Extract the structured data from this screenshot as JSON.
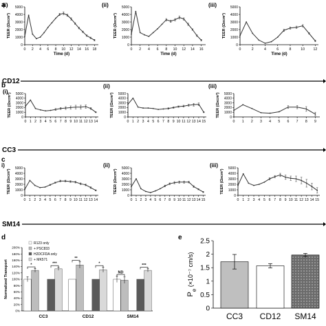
{
  "figure": {
    "panel_labels": {
      "a": "a",
      "b": "b",
      "c": "c",
      "d": "d",
      "e": "e"
    },
    "row_labels": [
      "CD12",
      "CC3",
      "SM14"
    ]
  },
  "chart_data": [
    {
      "id": "a-i",
      "type": "line",
      "subpanel_label": "(i)",
      "xlabel": "Time (d)",
      "ylabel": "TEER (Ωxcm²)",
      "xlim": [
        0,
        19
      ],
      "ylim": [
        0,
        5000
      ],
      "xticks": [
        0,
        2,
        4,
        6,
        8,
        10,
        12,
        14,
        16,
        18
      ],
      "yticks": [
        0,
        1000,
        2000,
        3000,
        4000,
        5000
      ],
      "ytick_labels": [
        "0",
        "1000",
        "2000",
        "3000",
        "4000",
        "5000"
      ],
      "x": [
        0,
        1,
        2,
        3,
        4,
        5,
        6,
        7,
        8,
        9,
        10,
        11,
        12,
        13,
        14,
        15,
        16,
        17,
        18
      ],
      "y": [
        1100,
        3900,
        1400,
        800,
        1000,
        1600,
        2300,
        2900,
        3500,
        4000,
        4150,
        3900,
        3400,
        2800,
        2200,
        1700,
        1200,
        900,
        600
      ],
      "err": [
        0,
        0,
        0,
        0,
        0,
        0,
        0,
        0,
        0,
        150,
        200,
        150,
        150,
        100,
        100,
        100,
        100,
        100,
        100
      ]
    },
    {
      "id": "a-ii",
      "type": "line",
      "subpanel_label": "(ii)",
      "xlabel": "Time (d)",
      "ylabel": "TEER (Ωxcm²)",
      "xlim": [
        0,
        17
      ],
      "ylim": [
        0,
        5000
      ],
      "xticks": [
        0,
        2,
        4,
        6,
        8,
        10,
        12,
        14,
        16
      ],
      "yticks": [
        0,
        1000,
        2000,
        3000,
        4000,
        5000
      ],
      "ytick_labels": [
        "0",
        "1000",
        "2000",
        "3000",
        "4000",
        "5000"
      ],
      "x": [
        0,
        1,
        2,
        3,
        4,
        5,
        6,
        7,
        8,
        9,
        10,
        11,
        12,
        13,
        14,
        15,
        16
      ],
      "y": [
        1400,
        4400,
        1600,
        1300,
        1100,
        1600,
        2100,
        2700,
        3300,
        3100,
        3300,
        3600,
        3400,
        2700,
        2000,
        1200,
        600
      ],
      "err": [
        0,
        0,
        0,
        0,
        0,
        0,
        0,
        0,
        150,
        150,
        150,
        200,
        150,
        150,
        100,
        100,
        100
      ]
    },
    {
      "id": "a-iii",
      "type": "line",
      "subpanel_label": "(iii)",
      "xlabel": "Time (d)",
      "ylabel": "TEER (Ωxcm²)",
      "xlim": [
        0,
        12.5
      ],
      "ylim": [
        0,
        5000
      ],
      "xticks": [
        0,
        2,
        4,
        6,
        8,
        10,
        12
      ],
      "yticks": [
        0,
        1000,
        2000,
        3000,
        4000,
        5000
      ],
      "ytick_labels": [
        "0",
        "1000",
        "2000",
        "3000",
        "4000",
        "5000"
      ],
      "x": [
        0,
        1,
        2,
        3,
        4,
        5,
        6,
        7,
        8,
        9,
        10,
        11,
        12
      ],
      "y": [
        1200,
        3000,
        1500,
        600,
        200,
        400,
        1000,
        1900,
        2200,
        2300,
        2500,
        1500,
        500
      ],
      "err": [
        0,
        0,
        0,
        0,
        0,
        0,
        0,
        150,
        150,
        150,
        150,
        100,
        100
      ]
    },
    {
      "id": "b-i",
      "type": "line",
      "subpanel_label": "(i)",
      "xlabel": "",
      "ylabel": "TEER (Ωxcm²)",
      "xlim": [
        0,
        14.5
      ],
      "ylim": [
        0,
        5000
      ],
      "xticks": [
        0,
        1,
        2,
        3,
        4,
        5,
        6,
        7,
        8,
        9,
        10,
        11,
        12,
        13,
        14
      ],
      "yticks": [
        0,
        1000,
        2000,
        3000,
        4000,
        5000
      ],
      "ytick_labels": [
        "0",
        "1000",
        "2000",
        "3000",
        "4000",
        "5000"
      ],
      "x": [
        0,
        1,
        2,
        3,
        4,
        5,
        6,
        7,
        8,
        9,
        10,
        11,
        12,
        13,
        14
      ],
      "y": [
        2300,
        3600,
        1800,
        1500,
        1300,
        1400,
        1600,
        1800,
        1900,
        2000,
        2100,
        2100,
        2200,
        1800,
        1000
      ],
      "err": [
        0,
        0,
        0,
        0,
        0,
        0,
        200,
        200,
        300,
        350,
        400,
        400,
        350,
        200,
        100
      ]
    },
    {
      "id": "b-ii",
      "type": "line",
      "subpanel_label": "(ii)",
      "xlabel": "",
      "ylabel": "TEER (Ωxcm²)",
      "xlim": [
        0,
        15.5
      ],
      "ylim": [
        0,
        5000
      ],
      "xticks": [
        0,
        1,
        2,
        3,
        4,
        5,
        6,
        7,
        8,
        9,
        10,
        11,
        12,
        13,
        14,
        15
      ],
      "yticks": [
        0,
        1000,
        2000,
        3000,
        4000,
        5000
      ],
      "ytick_labels": [
        "0",
        "1000",
        "2000",
        "3000",
        "4000",
        "5000"
      ],
      "x": [
        0,
        1,
        2,
        3,
        4,
        5,
        6,
        7,
        8,
        9,
        10,
        11,
        12,
        13,
        14,
        15
      ],
      "y": [
        2700,
        4000,
        2100,
        1900,
        1900,
        1800,
        1600,
        1700,
        1800,
        2000,
        2200,
        2300,
        2500,
        2600,
        2700,
        1000
      ],
      "err": [
        0,
        0,
        0,
        0,
        0,
        0,
        0,
        0,
        150,
        150,
        150,
        200,
        200,
        300,
        300,
        100
      ]
    },
    {
      "id": "b-iii",
      "type": "line",
      "subpanel_label": "(iii)",
      "xlabel": "",
      "ylabel": "TEER (Ωxcm²)",
      "xlim": [
        0,
        9.5
      ],
      "ylim": [
        0,
        5000
      ],
      "xticks": [
        0,
        1,
        2,
        3,
        4,
        5,
        6,
        7,
        8,
        9
      ],
      "yticks": [
        0,
        1000,
        2000,
        3000,
        4000,
        5000
      ],
      "ytick_labels": [
        "0",
        "1000",
        "2000",
        "3000",
        "4000",
        "5000"
      ],
      "x": [
        0,
        1,
        2,
        3,
        4,
        5,
        6,
        7,
        8,
        9
      ],
      "y": [
        1400,
        2600,
        1800,
        900,
        800,
        1100,
        2100,
        2100,
        1700,
        600
      ],
      "err": [
        0,
        0,
        0,
        0,
        0,
        0,
        300,
        350,
        500,
        400
      ]
    },
    {
      "id": "c-i",
      "type": "line",
      "subpanel_label": "i)",
      "xlabel": "",
      "ylabel": "TEER (Ωxcm²)",
      "xlim": [
        0,
        14.5
      ],
      "ylim": [
        0,
        5000
      ],
      "xticks": [
        0,
        1,
        2,
        3,
        4,
        5,
        6,
        7,
        8,
        9,
        10,
        11,
        12,
        13,
        14
      ],
      "yticks": [
        0,
        1000,
        2000,
        3000,
        4000,
        5000
      ],
      "ytick_labels": [
        "0",
        "1000",
        "2000",
        "3000",
        "4000",
        "5000"
      ],
      "x": [
        0,
        1,
        2,
        3,
        4,
        5,
        6,
        7,
        8,
        9,
        10,
        11,
        12,
        13,
        14
      ],
      "y": [
        1100,
        2700,
        1800,
        1400,
        1500,
        1900,
        2300,
        2600,
        2600,
        2500,
        2400,
        2100,
        1900,
        1400,
        900
      ],
      "err": [
        0,
        0,
        0,
        0,
        0,
        100,
        100,
        150,
        150,
        150,
        150,
        150,
        150,
        150,
        100
      ]
    },
    {
      "id": "c-ii",
      "type": "line",
      "subpanel_label": "(ii)",
      "xlabel": "",
      "ylabel": "TEER (Ωxcm²)",
      "xlim": [
        0,
        15.5
      ],
      "ylim": [
        0,
        5000
      ],
      "xticks": [
        0,
        1,
        2,
        3,
        4,
        5,
        6,
        7,
        8,
        9,
        10,
        11,
        12,
        13,
        14,
        15
      ],
      "yticks": [
        0,
        1000,
        2000,
        3000,
        4000,
        5000
      ],
      "ytick_labels": [
        "0",
        "1000",
        "2000",
        "3000",
        "4000",
        "5000"
      ],
      "x": [
        0,
        1,
        2,
        3,
        4,
        5,
        6,
        7,
        8,
        9,
        10,
        11,
        12,
        13,
        14,
        15
      ],
      "y": [
        1600,
        3000,
        1200,
        700,
        500,
        800,
        1200,
        1700,
        2100,
        2300,
        2400,
        2400,
        2400,
        1600,
        1100,
        600
      ],
      "err": [
        0,
        0,
        0,
        0,
        0,
        0,
        0,
        150,
        150,
        200,
        200,
        200,
        150,
        150,
        100,
        100
      ]
    },
    {
      "id": "c-iii",
      "type": "line",
      "subpanel_label": "(iii)",
      "xlabel": "",
      "ylabel": "TEER (Ωxcm²)",
      "xlim": [
        0,
        15.5
      ],
      "ylim": [
        0,
        5000
      ],
      "xticks": [
        0,
        1,
        2,
        3,
        4,
        5,
        6,
        7,
        8,
        9,
        10,
        11,
        12,
        13,
        14,
        15
      ],
      "yticks": [
        0,
        1000,
        2000,
        3000,
        4000,
        5000
      ],
      "ytick_labels": [
        "0",
        "1000",
        "2000",
        "3000",
        "4000",
        "5000"
      ],
      "x": [
        0,
        1,
        2,
        3,
        4,
        5,
        6,
        7,
        8,
        9,
        10,
        11,
        12,
        13,
        14,
        15
      ],
      "y": [
        1800,
        3900,
        2200,
        1800,
        2000,
        2400,
        3000,
        3400,
        3700,
        3300,
        3100,
        3000,
        2700,
        2200,
        1600,
        900
      ],
      "err": [
        0,
        0,
        0,
        0,
        0,
        0,
        200,
        200,
        300,
        400,
        400,
        500,
        600,
        700,
        600,
        500
      ]
    },
    {
      "id": "d",
      "type": "bar",
      "ylabel": "Normalized Transport",
      "ylim": [
        0,
        200
      ],
      "yticks": [
        0,
        20,
        40,
        60,
        80,
        100,
        120,
        140,
        160,
        180,
        200
      ],
      "ytick_labels": [
        "0%",
        "20%",
        "40%",
        "60%",
        "80%",
        "100%",
        "120%",
        "140%",
        "160%",
        "180%",
        "200%"
      ],
      "categories": [
        "CC3",
        "CD12",
        "SM14"
      ],
      "legend": [
        "R123 only",
        "+ PSC833",
        "H2DCFDA only",
        "+ MK571"
      ],
      "series": [
        {
          "name": "R123 only",
          "color": "#ffffff",
          "values": [
            100,
            100,
            100
          ],
          "err": [
            8,
            0,
            10
          ]
        },
        {
          "name": "+ PSC833",
          "color": "#bdbdbd",
          "values": [
            128,
            145,
            97
          ],
          "err": [
            6,
            10,
            10
          ]
        },
        {
          "name": "H2DCFDA only",
          "color": "#5a5a5a",
          "values": [
            100,
            100,
            100
          ],
          "err": [
            0,
            0,
            0
          ]
        },
        {
          "name": "+ MK571",
          "color": "#d9d9d9",
          "values": [
            133,
            130,
            128
          ],
          "err": [
            5,
            8,
            5
          ]
        }
      ],
      "annotations": [
        {
          "category": "CC3",
          "pair": "R123",
          "text": "*"
        },
        {
          "category": "CC3",
          "pair": "H2DCFDA",
          "text": "***"
        },
        {
          "category": "CD12",
          "pair": "R123",
          "text": "**"
        },
        {
          "category": "CD12",
          "pair": "H2DCFDA",
          "text": "*"
        },
        {
          "category": "SM14",
          "pair": "R123",
          "text": "ND"
        },
        {
          "category": "SM14",
          "pair": "H2DCFDA",
          "text": "***"
        }
      ]
    },
    {
      "id": "e",
      "type": "bar",
      "ylabel_main": "P",
      "ylabel_sub": "e",
      "ylabel_rest": " (×10⁻⁷ cm/s)",
      "ylim": [
        0,
        2.5
      ],
      "yticks": [
        0,
        0.5,
        1,
        1.5,
        2,
        2.5
      ],
      "ytick_labels": [
        "0",
        "0.5",
        "1",
        "1.5",
        "2",
        "2.5"
      ],
      "categories": [
        "CC3",
        "CD12",
        "SM14"
      ],
      "values": [
        1.72,
        1.57,
        1.97
      ],
      "err": [
        0.27,
        0.08,
        0.06
      ],
      "colors": [
        "#bfbfbf",
        "#ffffff",
        "#6b6b6b"
      ]
    }
  ]
}
